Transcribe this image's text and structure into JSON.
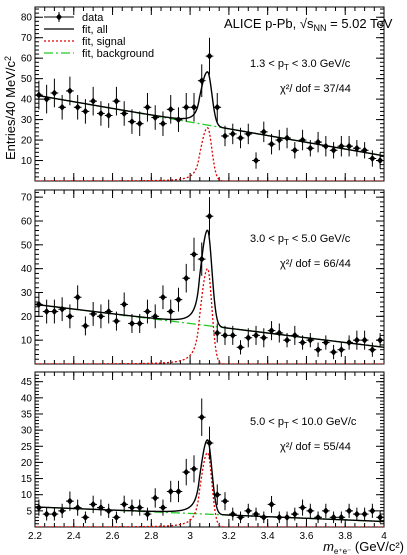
{
  "chart_data": [
    {
      "type": "scatter",
      "panel": "top",
      "header": "ALICE p-Pb,",
      "energy_label": "√s",
      "energy_sub": "NN",
      "energy_value": "= 5.02 TeV",
      "pt_range": "1.3 < p",
      "pt_sub": "T",
      "pt_range_rest": "< 3.0 GeV/c",
      "chi2": "χ²/ dof = 37/44",
      "ylim": [
        0,
        85
      ],
      "yticks": [
        10,
        20,
        30,
        40,
        50,
        60,
        70,
        80
      ],
      "ytick_labels": [
        "10",
        "20",
        "30",
        "40",
        "50",
        "60",
        "70",
        "80"
      ],
      "bg_fit": {
        "a": 42,
        "b": -16.5
      },
      "signal_fit": {
        "mu": 3.09,
        "amp": 26
      },
      "data": {
        "x": [
          2.22,
          2.26,
          2.3,
          2.34,
          2.38,
          2.42,
          2.46,
          2.5,
          2.54,
          2.58,
          2.62,
          2.66,
          2.7,
          2.74,
          2.78,
          2.82,
          2.86,
          2.9,
          2.94,
          2.98,
          3.02,
          3.06,
          3.1,
          3.14,
          3.18,
          3.22,
          3.26,
          3.3,
          3.34,
          3.38,
          3.42,
          3.46,
          3.5,
          3.54,
          3.58,
          3.62,
          3.66,
          3.7,
          3.74,
          3.78,
          3.82,
          3.86,
          3.9,
          3.94,
          3.98
        ],
        "y": [
          42,
          40,
          43,
          36,
          44,
          36,
          34,
          39,
          33,
          32,
          39,
          33,
          29,
          28,
          36,
          31,
          28,
          35,
          30,
          36,
          36,
          49,
          61,
          36,
          22,
          23,
          21,
          23,
          10,
          24,
          18,
          20,
          21,
          15,
          20,
          16,
          19,
          17,
          15,
          17,
          17,
          16,
          15,
          11,
          10
        ],
        "err": [
          7,
          7,
          7,
          6,
          7,
          6,
          6,
          7,
          6,
          6,
          7,
          6,
          6,
          6,
          7,
          6,
          6,
          7,
          6,
          7,
          7,
          8,
          9,
          7,
          5,
          5,
          5,
          5,
          4,
          5,
          5,
          5,
          5,
          4,
          5,
          4,
          5,
          5,
          4,
          5,
          5,
          4,
          4,
          4,
          4
        ]
      }
    },
    {
      "type": "scatter",
      "panel": "middle",
      "pt_range": "3.0 < p",
      "pt_sub": "T",
      "pt_range_rest": "< 5.0 GeV/c",
      "chi2": "χ²/ dof = 66/44",
      "ylim": [
        0,
        73
      ],
      "yticks": [
        10,
        20,
        30,
        40,
        50,
        60,
        70
      ],
      "ytick_labels": [
        "10",
        "20",
        "30",
        "40",
        "50",
        "60",
        "70"
      ],
      "bg_fit": {
        "a": 25,
        "b": -10
      },
      "signal_fit": {
        "mu": 3.09,
        "amp": 40
      },
      "data": {
        "x": [
          2.22,
          2.26,
          2.3,
          2.34,
          2.38,
          2.42,
          2.46,
          2.5,
          2.54,
          2.58,
          2.62,
          2.66,
          2.7,
          2.74,
          2.78,
          2.82,
          2.86,
          2.9,
          2.94,
          2.98,
          3.02,
          3.06,
          3.1,
          3.14,
          3.18,
          3.22,
          3.26,
          3.3,
          3.34,
          3.38,
          3.42,
          3.46,
          3.5,
          3.54,
          3.58,
          3.62,
          3.66,
          3.7,
          3.74,
          3.78,
          3.82,
          3.86,
          3.9,
          3.94,
          3.98
        ],
        "y": [
          25,
          22,
          22,
          23,
          20,
          28,
          16,
          21,
          20,
          22,
          18,
          25,
          17,
          17,
          22,
          20,
          28,
          22,
          27,
          36,
          46,
          44,
          62,
          13,
          12,
          12,
          7,
          11,
          12,
          11,
          14,
          13,
          10,
          12,
          9,
          10,
          6,
          9,
          5,
          6,
          9,
          10,
          10,
          6,
          10
        ],
        "err": [
          5,
          5,
          5,
          5,
          5,
          5,
          4,
          5,
          5,
          5,
          4,
          5,
          4,
          4,
          5,
          5,
          5,
          5,
          5,
          6,
          7,
          7,
          8,
          4,
          4,
          4,
          3,
          4,
          4,
          4,
          4,
          4,
          3,
          4,
          3,
          3,
          3,
          3,
          3,
          3,
          3,
          4,
          4,
          3,
          3
        ]
      }
    },
    {
      "type": "scatter",
      "panel": "bottom",
      "pt_range": "5.0 < p",
      "pt_sub": "T",
      "pt_range_rest": "< 10.0 GeV/c",
      "chi2": "χ²/ dof = 55/44",
      "ylim": [
        0,
        48
      ],
      "yticks": [
        5,
        10,
        15,
        20,
        25,
        30,
        35,
        40,
        45
      ],
      "ytick_labels": [
        "5",
        "10",
        "15",
        "20",
        "25",
        "30",
        "35",
        "40",
        "45"
      ],
      "bg_fit": {
        "a": 6.2,
        "b": -2.5
      },
      "signal_fit": {
        "mu": 3.09,
        "amp": 23
      },
      "data": {
        "x": [
          2.22,
          2.26,
          2.3,
          2.34,
          2.38,
          2.42,
          2.46,
          2.5,
          2.54,
          2.58,
          2.62,
          2.66,
          2.7,
          2.74,
          2.78,
          2.82,
          2.86,
          2.9,
          2.94,
          2.98,
          3.02,
          3.06,
          3.1,
          3.14,
          3.18,
          3.22,
          3.26,
          3.3,
          3.34,
          3.38,
          3.42,
          3.46,
          3.5,
          3.54,
          3.58,
          3.62,
          3.66,
          3.7,
          3.74,
          3.78,
          3.82,
          3.86,
          3.9,
          3.94,
          3.98
        ],
        "y": [
          6,
          4,
          4,
          5,
          8,
          6,
          3,
          7,
          6,
          5,
          3,
          7,
          6,
          6,
          4,
          9,
          6,
          11,
          11,
          17,
          18,
          34,
          26,
          10,
          8,
          4,
          3,
          5,
          4,
          3,
          7,
          3,
          3,
          4,
          6,
          5,
          3,
          5,
          3,
          3,
          5,
          4,
          4,
          5,
          3
        ],
        "err": [
          2.5,
          2,
          2,
          2.2,
          3,
          2.5,
          1.8,
          2.7,
          2.5,
          2.2,
          1.8,
          2.7,
          2.5,
          2.5,
          2,
          3,
          2.5,
          3.3,
          3.3,
          4.1,
          4.2,
          5.8,
          5.1,
          3.2,
          2.8,
          2,
          1.8,
          2.2,
          2,
          1.8,
          2.6,
          1.8,
          1.8,
          2,
          2.5,
          2.2,
          1.8,
          2.2,
          1.8,
          1.8,
          2.2,
          2,
          2,
          2.2,
          1.8
        ]
      }
    }
  ],
  "shared": {
    "x_range": [
      2.2,
      4.0
    ],
    "xticks": [
      2.2,
      2.4,
      2.6,
      2.8,
      3.0,
      3.2,
      3.4,
      3.6,
      3.8,
      4.0
    ],
    "xtick_labels": [
      "2.2",
      "2.4",
      "2.6",
      "2.8",
      "3",
      "3.2",
      "3.4",
      "3.6",
      "3.8",
      "4"
    ],
    "ylabel": "Entries/40 MeV/c",
    "ylabel_sup": "2",
    "xlabel_m": "m",
    "xlabel_sub": "e⁺e⁻",
    "xlabel_units": "(GeV/c²)",
    "legend": [
      {
        "label": "data",
        "style": "marker"
      },
      {
        "label": "fit, all",
        "style": "solid",
        "color": "#000000"
      },
      {
        "label": "fit, signal",
        "style": "dotted",
        "color": "#e00000"
      },
      {
        "label": "fit, background",
        "style": "dashdot",
        "color": "#22cc22"
      }
    ],
    "colors": {
      "all": "#000000",
      "signal": "#e00000",
      "background": "#22cc22"
    }
  }
}
